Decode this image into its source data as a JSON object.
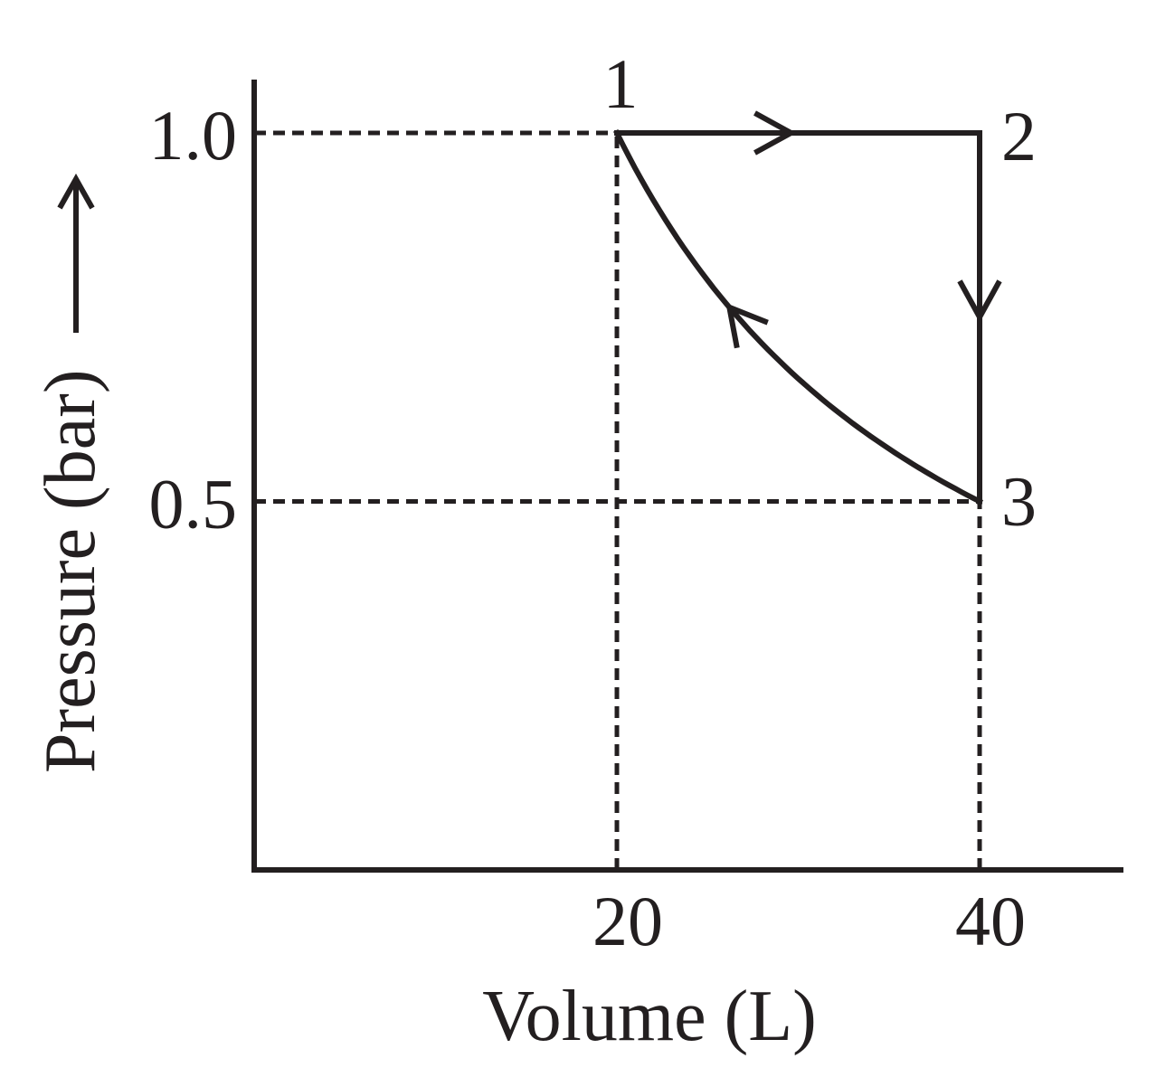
{
  "chart_data": {
    "type": "line",
    "xlabel": "Volume (L)",
    "ylabel": "Pressure (bar)",
    "ylabel_arrow": "⟶",
    "x_ticks": [
      {
        "value": 20,
        "label": "20"
      },
      {
        "value": 40,
        "label": "40"
      }
    ],
    "y_ticks": [
      {
        "value": 1.0,
        "label": "1.0"
      },
      {
        "value": 0.5,
        "label": "0.5"
      }
    ],
    "xlim": [
      0,
      48
    ],
    "ylim": [
      0,
      1.07
    ],
    "grid": false,
    "points": [
      {
        "label": "1",
        "x": 20,
        "y": 1.0
      },
      {
        "label": "2",
        "x": 40,
        "y": 1.0
      },
      {
        "label": "3",
        "x": 40,
        "y": 0.5
      }
    ],
    "segments": [
      {
        "from": "1",
        "to": "2",
        "kind": "isobaric"
      },
      {
        "from": "2",
        "to": "3",
        "kind": "isochoric"
      },
      {
        "from": "3",
        "to": "1",
        "kind": "isothermal"
      }
    ],
    "line_color": "#231f20"
  }
}
